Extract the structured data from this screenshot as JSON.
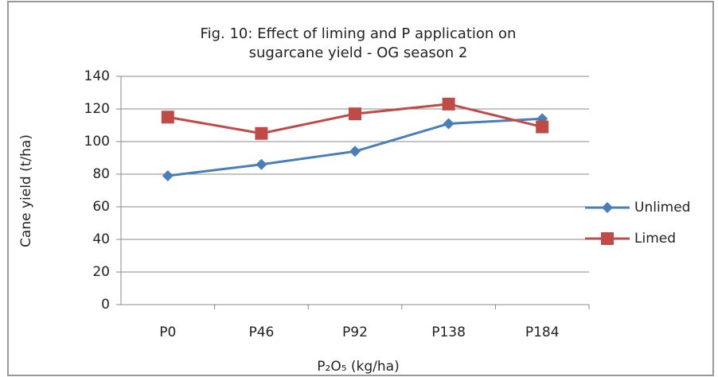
{
  "chart_data": {
    "type": "line",
    "title": [
      "Fig. 10: Effect of liming and P application on",
      "sugarcane yield - OG season 2"
    ],
    "x_label": "P₂O₅ (kg/ha)",
    "y_label": "Cane yield (t/ha)",
    "categories": [
      "P0",
      "P46",
      "P92",
      "P138",
      "P184"
    ],
    "series": [
      {
        "name": "Unlimed",
        "color": "#4a7ebb",
        "marker": "diamond",
        "values": [
          79,
          86,
          94,
          111,
          114
        ]
      },
      {
        "name": "Limed",
        "color": "#be4b48",
        "marker": "square",
        "values": [
          115,
          105,
          117,
          123,
          109
        ]
      }
    ],
    "ylim": [
      0,
      140
    ],
    "yticks": [
      0,
      20,
      40,
      60,
      80,
      100,
      120,
      140
    ],
    "grid": true,
    "legend": "right"
  }
}
